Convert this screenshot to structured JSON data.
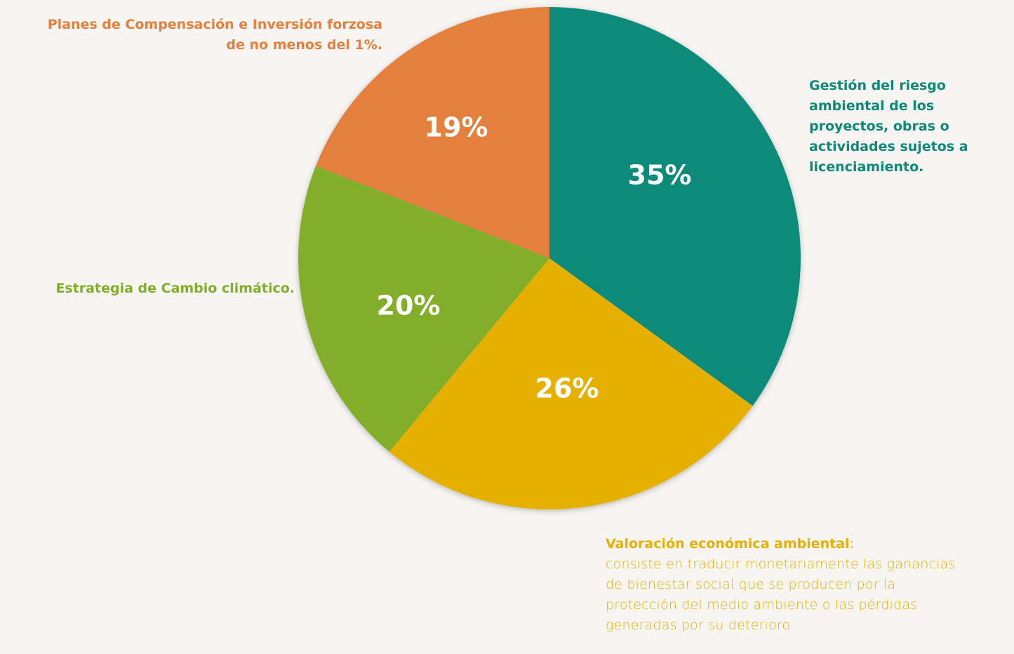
{
  "chart_data": {
    "type": "pie",
    "categories": [
      "Gestión del riesgo ambiental de los proyectos, obras o actividades sujetos a licenciamiento.",
      "Valoración económica ambiental",
      "Estrategia de Cambio climático.",
      "Planes de Compensación e Inversión forzosa de no menos del 1%."
    ],
    "values": [
      35,
      26,
      20,
      19
    ],
    "value_labels": [
      "35%",
      "26%",
      "20%",
      "19%"
    ],
    "colors": [
      "#0b8a79",
      "#e5b000",
      "#82ae2a",
      "#e47f3c"
    ],
    "label_suffix": ":",
    "annotation": "consiste en traducir monetariamente las ganancias de bienestar social que se producen por la protección del medio ambiente o las pérdidas generadas por su deterioro."
  }
}
